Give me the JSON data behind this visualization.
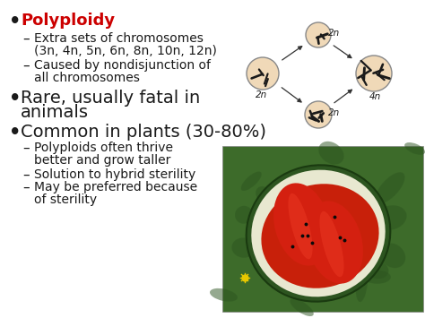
{
  "bg_color": "#ffffff",
  "bullet1_bold": "Polyploidy",
  "bullet1_color": "#cc0000",
  "sub1a_line1": "Extra sets of chromosomes",
  "sub1a_line2": "(3n, 4n, 5n, 6n, 8n, 10n, 12n)",
  "sub1b_line1": "Caused by nondisjunction of",
  "sub1b_line2": "all chromosomes",
  "bullet2_line1": "Rare, usually fatal in",
  "bullet2_line2": "animals",
  "bullet3": "Common in plants (30-80%)",
  "sub3a_line1": "Polyploids often thrive",
  "sub3a_line2": "better and grow taller",
  "sub3b": "Solution to hybrid sterility",
  "sub3c_line1": "May be preferred because",
  "sub3c_line2": "of sterility",
  "text_color": "#1a1a1a",
  "bullet_color": "#1a1a1a",
  "font_size_main": 12,
  "font_size_sub": 10,
  "font_size_title": 13,
  "egg_color": "#f0d9b8",
  "egg_edge": "#888888",
  "chrom_color": "#1a1a1a",
  "arrow_color": "#333333",
  "label_color": "#1a1a1a"
}
